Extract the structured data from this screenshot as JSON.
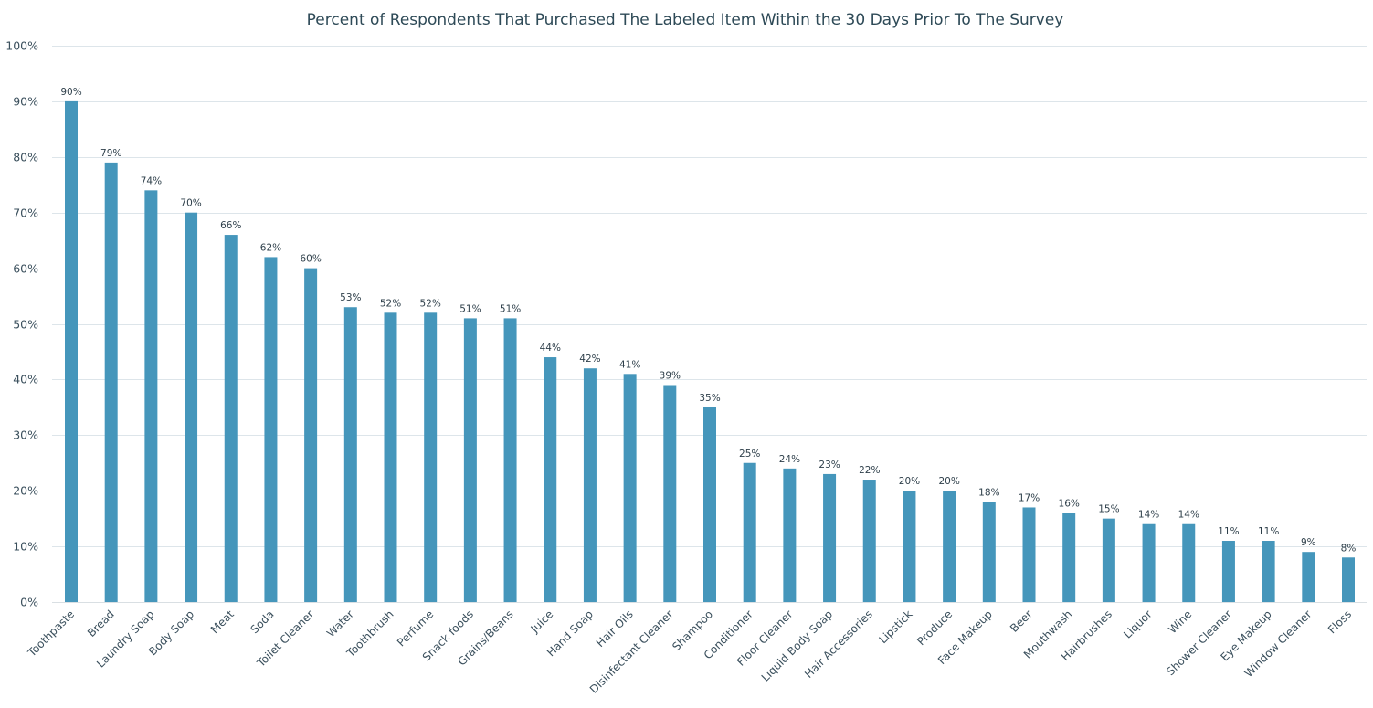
{
  "chart_data": {
    "type": "bar",
    "title": "Percent of Respondents That Purchased The Labeled Item Within the 30 Days Prior To The Survey",
    "xlabel": "",
    "ylabel": "",
    "ylim": [
      0,
      100
    ],
    "yticks": [
      "0%",
      "10%",
      "20%",
      "30%",
      "40%",
      "50%",
      "60%",
      "70%",
      "80%",
      "90%",
      "100%"
    ],
    "grid": true,
    "bar_color": "#4596bb",
    "categories": [
      "Toothpaste",
      "Bread",
      "Laundry Soap",
      "Body Soap",
      "Meat",
      "Soda",
      "Toilet Cleaner",
      "Water",
      "Toothbrush",
      "Perfume",
      "Snack foods",
      "Grains/Beans",
      "Juice",
      "Hand Soap",
      "Hair Oils",
      "Disinfectant Cleaner",
      "Shampoo",
      "Conditioner",
      "Floor Cleaner",
      "Liquid Body Soap",
      "Hair Accessories",
      "Lipstick",
      "Produce",
      "Face Makeup",
      "Beer",
      "Mouthwash",
      "Hairbrushes",
      "Liquor",
      "Wine",
      "Shower Cleaner",
      "Eye Makeup",
      "Window Cleaner",
      "Floss"
    ],
    "values": [
      90,
      79,
      74,
      70,
      66,
      62,
      60,
      53,
      52,
      52,
      51,
      51,
      44,
      42,
      41,
      39,
      35,
      25,
      24,
      23,
      22,
      20,
      20,
      18,
      17,
      16,
      15,
      14,
      14,
      11,
      11,
      9,
      8
    ],
    "data_labels": [
      "90%",
      "79%",
      "74%",
      "70%",
      "66%",
      "62%",
      "60%",
      "53%",
      "52%",
      "52%",
      "51%",
      "51%",
      "44%",
      "42%",
      "41%",
      "39%",
      "35%",
      "25%",
      "24%",
      "23%",
      "22%",
      "20%",
      "20%",
      "18%",
      "17%",
      "16%",
      "15%",
      "14%",
      "14%",
      "11%",
      "11%",
      "9%",
      "8%"
    ]
  }
}
